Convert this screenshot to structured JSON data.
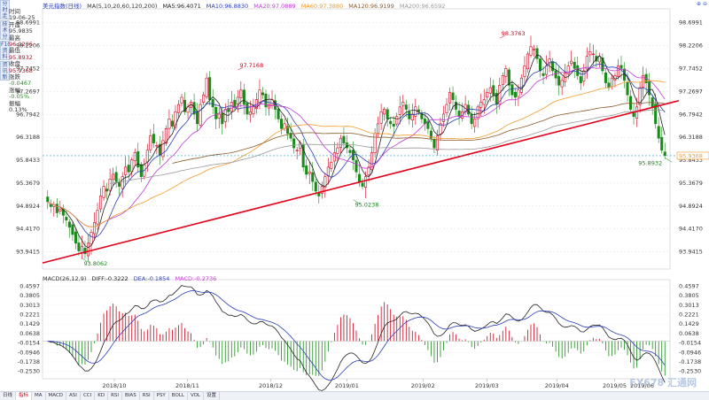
{
  "header": {
    "title": "美元指数(日线)",
    "ma_params": "MA(5,10,20,60,120,200)",
    "ma5": "MA5:96.4071",
    "ma10": "MA10:96.8830",
    "ma20": "MA20:97.0889",
    "ma60": "MA60:97.3880",
    "ma120": "MA120:96.9199",
    "ma200": "MA200:96.6592"
  },
  "left_tabs": [
    "分时走势",
    "技术分析",
    "F10资料",
    "资讯新闻"
  ],
  "info_panel": [
    {
      "label": "时间",
      "value": "19-06-25"
    },
    {
      "label": "开盘",
      "value": "95.9835"
    },
    {
      "label": "最高",
      "value": "96.0206"
    },
    {
      "label": "最低",
      "value": "95.8932"
    },
    {
      "label": "收盘",
      "value": "95.9368"
    },
    {
      "label": "涨跌",
      "value": "-0.0467"
    },
    {
      "label": "涨幅",
      "value": "-0.05%"
    },
    {
      "label": "振幅",
      "value": "0.13%"
    }
  ],
  "macd_header": {
    "params": "MACD(26,12,9)",
    "diff": "DIFF:-0.3222",
    "dea": "DEA:-0.1854",
    "macd": "MACD:-0.2736"
  },
  "bottom_tabs": [
    "日线",
    "指标",
    "MA",
    "MACD",
    "ASI",
    "CCI",
    "KD",
    "RSI",
    "BIAS",
    "RSI",
    "PSY",
    "BOLL",
    "VOL",
    "设置"
  ],
  "watermark": "FX678 汇通网",
  "top_icons": "⊕ ⊖",
  "colors": {
    "up": "#d0021b",
    "down": "#1a8a1a",
    "ma5": "#222222",
    "ma10": "#2a3db8",
    "ma20": "#c23ad6",
    "ma60": "#f29b2b",
    "ma120": "#8b5a2b",
    "ma200": "#999999",
    "trend": "#e3001b",
    "cursor": "#2aa3c4"
  },
  "chart_data": [
    {
      "type": "candlestick",
      "title": "美元指数(日线)",
      "x_ticks": [
        "2018/10",
        "2018/11",
        "2018/12",
        "2019/01",
        "2019/02",
        "2019/03",
        "2019/04",
        "2019/05",
        "2019/06"
      ],
      "y_ticks": [
        98.6991,
        98.2206,
        97.7452,
        97.2697,
        96.7942,
        96.3188,
        95.8433,
        95.3679,
        94.8924,
        94.417,
        93.9415
      ],
      "ylim": [
        93.62,
        98.95
      ],
      "annotations": [
        {
          "label": "93.8062",
          "value": 93.8062
        },
        {
          "label": "97.7168",
          "value": 97.7168
        },
        {
          "label": "95.0238",
          "value": 95.0238
        },
        {
          "label": "98.3763",
          "value": 98.3763
        },
        {
          "label": "95.8932",
          "value": 95.8932
        }
      ],
      "current_price_label": "95.9368",
      "current_price": 95.9368,
      "trend_line": {
        "start": 93.71,
        "end": 97.08
      },
      "closes": [
        94.98,
        94.88,
        94.92,
        94.75,
        94.83,
        94.7,
        94.6,
        94.45,
        94.3,
        94.12,
        93.96,
        94.05,
        93.9,
        94.12,
        94.35,
        94.55,
        94.8,
        95.1,
        95.3,
        95.2,
        95.45,
        95.55,
        95.4,
        95.3,
        95.5,
        95.7,
        95.6,
        95.85,
        96.0,
        95.7,
        95.5,
        95.75,
        96.05,
        96.35,
        96.2,
        96.15,
        95.95,
        96.25,
        96.5,
        96.7,
        96.55,
        96.85,
        97.0,
        97.15,
        96.85,
        96.95,
        97.05,
        96.8,
        96.6,
        97.0,
        97.2,
        97.55,
        97.1,
        96.95,
        96.7,
        96.8,
        96.6,
        96.9,
        96.85,
        97.05,
        96.95,
        97.15,
        97.3,
        97.0,
        96.8,
        96.85,
        96.95,
        97.1,
        97.3,
        97.2,
        96.95,
        97.0,
        97.1,
        96.9,
        96.7,
        96.5,
        96.6,
        96.4,
        96.3,
        96.1,
        96.05,
        96.2,
        95.7,
        95.55,
        95.6,
        95.4,
        95.2,
        95.1,
        95.3,
        95.5,
        95.7,
        95.8,
        96.0,
        96.1,
        96.3,
        96.2,
        96.1,
        96.0,
        95.85,
        95.6,
        95.4,
        95.3,
        95.5,
        95.7,
        96.0,
        96.4,
        96.6,
        96.85,
        96.9,
        96.7,
        96.6,
        96.55,
        96.75,
        96.95,
        97.05,
        96.9,
        96.7,
        96.8,
        96.95,
        96.85,
        96.7,
        96.6,
        96.5,
        96.3,
        96.1,
        96.35,
        96.6,
        96.8,
        97.0,
        97.25,
        97.1,
        96.9,
        96.75,
        96.85,
        97.0,
        96.8,
        96.6,
        96.7,
        96.95,
        97.05,
        97.1,
        97.25,
        97.35,
        97.2,
        97.0,
        97.4,
        97.6,
        97.75,
        97.4,
        97.2,
        97.15,
        97.3,
        97.55,
        97.8,
        98.05,
        98.2,
        98.15,
        97.95,
        97.7,
        97.6,
        97.8,
        97.95,
        97.7,
        97.55,
        97.4,
        97.5,
        97.65,
        97.8,
        97.9,
        97.75,
        97.6,
        97.45,
        97.7,
        98.0,
        98.1,
        98.05,
        97.9,
        98.0,
        97.7,
        97.45,
        97.35,
        97.55,
        97.6,
        97.8,
        97.75,
        97.5,
        97.2,
        96.9,
        96.75,
        96.95,
        97.35,
        97.6,
        97.45,
        97.2,
        96.95,
        96.6,
        96.3,
        96.05,
        95.94
      ],
      "series": [
        {
          "name": "MA5"
        },
        {
          "name": "MA10"
        },
        {
          "name": "MA20"
        },
        {
          "name": "MA60"
        },
        {
          "name": "MA120"
        },
        {
          "name": "MA200"
        }
      ]
    },
    {
      "type": "bar",
      "title": "MACD(26,12,9)",
      "y_ticks": [
        0.4597,
        0.3805,
        0.3013,
        0.2221,
        0.1429,
        0.0638,
        -0.0154,
        -0.0946,
        -0.1738,
        -0.253
      ],
      "ylim": [
        -0.3,
        0.5
      ],
      "series": [
        {
          "name": "DIFF"
        },
        {
          "name": "DEA"
        },
        {
          "name": "MACD"
        }
      ]
    }
  ]
}
